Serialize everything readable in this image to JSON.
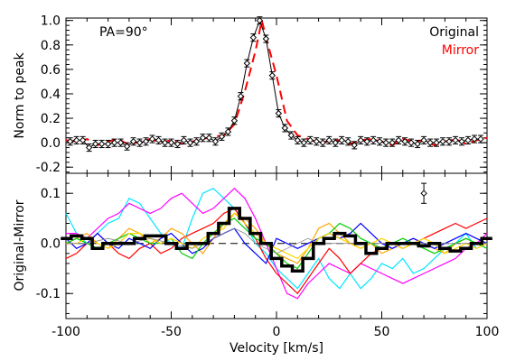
{
  "chart_data": [
    {
      "type": "line",
      "panel": "top",
      "ylabel": "Norm to peak",
      "xlim": [
        -100,
        100
      ],
      "ylim": [
        -0.25,
        1.02
      ],
      "yticks": [
        -0.2,
        0.0,
        0.2,
        0.4,
        0.6,
        0.8,
        1.0
      ],
      "ytick_labels": [
        "-0.2",
        "0.0",
        "0.2",
        "0.4",
        "0.6",
        "0.8",
        "1.0"
      ],
      "xticks": [
        -100,
        -50,
        0,
        50,
        100
      ],
      "annotation": "PA=90°",
      "legend": [
        "Original",
        "Mirror"
      ],
      "legend_position": "top-right",
      "series": [
        {
          "name": "Original",
          "color": "#000000",
          "style": "diamonds-with-errorbars",
          "error": 0.03,
          "x": [
            -98,
            -95,
            -92,
            -89,
            -86,
            -83,
            -80,
            -77,
            -74,
            -71,
            -68,
            -65,
            -62,
            -59,
            -56,
            -53,
            -50,
            -47,
            -44,
            -41,
            -38,
            -35,
            -32,
            -29,
            -26,
            -23,
            -20,
            -17,
            -14,
            -11,
            -8,
            -5,
            -2,
            1,
            4,
            7,
            10,
            13,
            16,
            19,
            22,
            25,
            28,
            31,
            34,
            37,
            40,
            43,
            46,
            49,
            52,
            55,
            58,
            61,
            64,
            67,
            70,
            73,
            76,
            79,
            82,
            85,
            88,
            91,
            94,
            97
          ],
          "values": [
            0.01,
            0.02,
            0.02,
            -0.04,
            -0.01,
            -0.01,
            -0.01,
            0.0,
            0.0,
            -0.03,
            0.01,
            0.0,
            0.01,
            0.03,
            0.02,
            0.0,
            0.0,
            -0.01,
            0.02,
            0.0,
            0.01,
            0.04,
            0.04,
            0.01,
            0.05,
            0.09,
            0.18,
            0.38,
            0.65,
            0.86,
            1.0,
            0.85,
            0.55,
            0.24,
            0.12,
            0.06,
            0.02,
            0.0,
            0.02,
            0.01,
            0.0,
            0.02,
            0.0,
            0.02,
            0.01,
            -0.02,
            0.02,
            0.01,
            0.02,
            0.01,
            0.0,
            0.0,
            0.02,
            0.01,
            0.0,
            -0.01,
            0.02,
            0.0,
            0.0,
            0.01,
            0.01,
            0.02,
            0.01,
            0.02,
            0.03,
            0.03
          ]
        },
        {
          "name": "Mirror",
          "color": "#ff0000",
          "style": "dashed",
          "x": [
            -100,
            -95,
            -90,
            -85,
            -80,
            -75,
            -70,
            -65,
            -60,
            -55,
            -50,
            -45,
            -40,
            -35,
            -30,
            -25,
            -20,
            -15,
            -10,
            -7,
            -4,
            0,
            5,
            10,
            15,
            20,
            25,
            30,
            35,
            40,
            45,
            50,
            55,
            60,
            65,
            70,
            75,
            80,
            85,
            90,
            95,
            100
          ],
          "values": [
            0.02,
            0.01,
            0.03,
            -0.02,
            0.01,
            0.03,
            -0.02,
            0.01,
            0.03,
            0.0,
            0.02,
            -0.01,
            0.01,
            0.03,
            0.05,
            0.06,
            0.15,
            0.42,
            0.75,
            1.0,
            0.8,
            0.55,
            0.18,
            0.06,
            0.03,
            0.0,
            0.01,
            0.02,
            -0.01,
            0.02,
            0.03,
            0.01,
            -0.02,
            0.03,
            0.01,
            0.02,
            -0.02,
            0.01,
            0.03,
            -0.01,
            0.02,
            0.04
          ]
        }
      ]
    },
    {
      "type": "line",
      "panel": "bottom",
      "ylabel": "Original-Mirror",
      "xlabel": "Velocity [km/s]",
      "xlim": [
        -100,
        100
      ],
      "ylim": [
        -0.15,
        0.14
      ],
      "yticks": [
        -0.1,
        0.0,
        0.1
      ],
      "ytick_labels": [
        "-0.1",
        "0.0",
        "0.1"
      ],
      "xticks": [
        -100,
        -50,
        0,
        50,
        100
      ],
      "xtick_labels": [
        "-100",
        "-50",
        "0",
        "50",
        "100"
      ],
      "reference_line": {
        "y": 0,
        "color": "#000000",
        "style": "dashed"
      },
      "errorbar_point": {
        "x": 70,
        "y": 0.1,
        "error": 0.02
      },
      "series": [
        {
          "color": "#000000",
          "style": "thick-step",
          "x": [
            -100,
            -95,
            -90,
            -85,
            -80,
            -75,
            -70,
            -65,
            -60,
            -55,
            -50,
            -45,
            -40,
            -35,
            -30,
            -25,
            -20,
            -15,
            -10,
            -5,
            0,
            5,
            10,
            15,
            20,
            25,
            30,
            35,
            40,
            45,
            50,
            55,
            60,
            65,
            70,
            75,
            80,
            85,
            90,
            95,
            100
          ],
          "values": [
            0.01,
            0.015,
            0.01,
            -0.01,
            0.0,
            0.0,
            0.0,
            0.01,
            0.015,
            0.015,
            0.0,
            -0.01,
            0.0,
            0.0,
            0.02,
            0.04,
            0.07,
            0.05,
            0.02,
            0.0,
            -0.03,
            -0.045,
            -0.055,
            -0.03,
            0.0,
            0.01,
            0.02,
            0.015,
            0.0,
            -0.02,
            -0.01,
            0.0,
            0.0,
            0.0,
            -0.005,
            0.0,
            -0.01,
            -0.015,
            -0.01,
            0.0,
            0.01
          ]
        },
        {
          "color": "#00e5ff",
          "x": [
            -100,
            -95,
            -90,
            -85,
            -80,
            -75,
            -70,
            -65,
            -60,
            -55,
            -50,
            -45,
            -40,
            -35,
            -30,
            -25,
            -20,
            -15,
            -10,
            -5,
            0,
            5,
            10,
            15,
            20,
            25,
            30,
            35,
            40,
            45,
            50,
            55,
            60,
            65,
            70,
            75,
            80,
            85,
            90,
            95,
            100
          ],
          "values": [
            0.06,
            0.02,
            0.0,
            0.02,
            0.04,
            0.05,
            0.09,
            0.08,
            0.05,
            0.02,
            0.0,
            -0.01,
            0.05,
            0.1,
            0.11,
            0.09,
            0.07,
            0.04,
            0.0,
            -0.02,
            -0.05,
            -0.07,
            -0.09,
            -0.06,
            -0.03,
            -0.07,
            -0.09,
            -0.06,
            -0.09,
            -0.07,
            -0.04,
            -0.05,
            -0.03,
            -0.06,
            -0.05,
            -0.03,
            -0.01,
            0.0,
            0.02,
            -0.01,
            0.0
          ]
        },
        {
          "color": "#ff00ff",
          "x": [
            -100,
            -95,
            -90,
            -85,
            -80,
            -75,
            -70,
            -65,
            -60,
            -55,
            -50,
            -45,
            -40,
            -35,
            -30,
            -25,
            -20,
            -15,
            -10,
            -5,
            0,
            5,
            10,
            15,
            20,
            25,
            30,
            35,
            40,
            45,
            50,
            55,
            60,
            65,
            70,
            75,
            80,
            85,
            90,
            95,
            100
          ],
          "values": [
            0.02,
            0.02,
            0.01,
            0.03,
            0.05,
            0.06,
            0.08,
            0.07,
            0.06,
            0.07,
            0.09,
            0.1,
            0.08,
            0.06,
            0.07,
            0.09,
            0.11,
            0.09,
            0.05,
            0.0,
            -0.05,
            -0.1,
            -0.11,
            -0.08,
            -0.06,
            -0.04,
            -0.05,
            -0.06,
            -0.04,
            -0.05,
            -0.06,
            -0.07,
            -0.08,
            -0.07,
            -0.06,
            -0.05,
            -0.04,
            -0.03,
            -0.01,
            0.0,
            0.02
          ]
        },
        {
          "color": "#ff0000",
          "x": [
            -100,
            -95,
            -90,
            -85,
            -80,
            -75,
            -70,
            -65,
            -60,
            -55,
            -50,
            -45,
            -40,
            -35,
            -30,
            -25,
            -20,
            -15,
            -10,
            -5,
            0,
            5,
            10,
            15,
            20,
            25,
            30,
            35,
            40,
            45,
            50,
            55,
            60,
            65,
            70,
            75,
            80,
            85,
            90,
            95,
            100
          ],
          "values": [
            -0.03,
            -0.02,
            0.0,
            0.02,
            0.0,
            -0.02,
            -0.03,
            -0.01,
            0.0,
            -0.02,
            -0.01,
            0.01,
            0.02,
            0.03,
            0.04,
            0.06,
            0.07,
            0.04,
            0.01,
            -0.03,
            -0.06,
            -0.08,
            -0.1,
            -0.07,
            -0.04,
            -0.01,
            -0.03,
            -0.06,
            -0.04,
            -0.02,
            -0.01,
            0.0,
            -0.01,
            0.0,
            0.01,
            0.02,
            0.03,
            0.04,
            0.03,
            0.04,
            0.05
          ]
        },
        {
          "color": "#ffa500",
          "x": [
            -100,
            -95,
            -90,
            -85,
            -80,
            -75,
            -70,
            -65,
            -60,
            -55,
            -50,
            -45,
            -40,
            -35,
            -30,
            -25,
            -20,
            -15,
            -10,
            -5,
            0,
            5,
            10,
            15,
            20,
            25,
            30,
            35,
            40,
            45,
            50,
            55,
            60,
            65,
            70,
            75,
            80,
            85,
            90,
            95,
            100
          ],
          "values": [
            0.0,
            0.01,
            0.02,
            0.0,
            -0.01,
            0.01,
            0.03,
            0.02,
            0.0,
            0.01,
            0.03,
            0.02,
            0.0,
            -0.02,
            0.01,
            0.04,
            0.06,
            0.05,
            0.03,
            0.0,
            -0.02,
            -0.03,
            -0.04,
            -0.01,
            0.03,
            0.04,
            0.02,
            0.0,
            -0.01,
            0.0,
            -0.02,
            -0.01,
            0.0,
            0.01,
            0.0,
            -0.01,
            -0.02,
            0.0,
            0.01,
            0.0,
            0.0
          ]
        },
        {
          "color": "#0000ff",
          "x": [
            -100,
            -95,
            -90,
            -85,
            -80,
            -75,
            -70,
            -65,
            -60,
            -55,
            -50,
            -45,
            -40,
            -35,
            -30,
            -25,
            -20,
            -15,
            -10,
            -5,
            0,
            5,
            10,
            15,
            20,
            25,
            30,
            35,
            40,
            45,
            50,
            55,
            60,
            65,
            70,
            75,
            80,
            85,
            90,
            95,
            100
          ],
          "values": [
            0.01,
            -0.01,
            0.0,
            0.02,
            0.0,
            -0.01,
            0.01,
            0.0,
            -0.01,
            0.01,
            0.02,
            0.0,
            -0.02,
            -0.01,
            0.01,
            0.02,
            0.03,
            0.0,
            -0.02,
            -0.04,
            0.01,
            0.0,
            -0.01,
            0.0,
            0.01,
            0.02,
            0.01,
            0.02,
            0.04,
            0.02,
            0.0,
            -0.01,
            0.0,
            0.01,
            0.0,
            -0.01,
            0.0,
            0.01,
            0.02,
            0.01,
            0.0
          ]
        },
        {
          "color": "#00cc00",
          "x": [
            -100,
            -95,
            -90,
            -85,
            -80,
            -75,
            -70,
            -65,
            -60,
            -55,
            -50,
            -45,
            -40,
            -35,
            -30,
            -25,
            -20,
            -15,
            -10,
            -5,
            0,
            5,
            10,
            15,
            20,
            25,
            30,
            35,
            40,
            45,
            50,
            55,
            60,
            65,
            70,
            75,
            80,
            85,
            90,
            95,
            100
          ],
          "values": [
            0.0,
            0.01,
            0.0,
            -0.01,
            0.0,
            0.01,
            0.02,
            0.01,
            0.0,
            0.0,
            0.01,
            -0.02,
            -0.03,
            0.0,
            0.02,
            0.04,
            0.05,
            0.03,
            0.01,
            0.0,
            -0.02,
            -0.04,
            -0.05,
            -0.02,
            0.01,
            0.02,
            0.04,
            0.03,
            0.01,
            0.0,
            -0.01,
            0.0,
            0.01,
            0.0,
            -0.01,
            -0.02,
            -0.01,
            0.0,
            0.01,
            0.0,
            -0.01
          ]
        },
        {
          "color": "#ffd700",
          "x": [
            -100,
            -95,
            -90,
            -85,
            -80,
            -75,
            -70,
            -65,
            -60,
            -55,
            -50,
            -45,
            -40,
            -35,
            -30,
            -25,
            -20,
            -15,
            -10,
            -5,
            0,
            5,
            10,
            15,
            20,
            25,
            30,
            35,
            40,
            45,
            50,
            55,
            60,
            65,
            70,
            75,
            80,
            85,
            90,
            95,
            100
          ],
          "values": [
            0.0,
            0.0,
            0.01,
            0.0,
            -0.01,
            0.0,
            0.02,
            0.02,
            0.01,
            0.0,
            0.01,
            0.0,
            -0.01,
            0.01,
            0.02,
            0.03,
            0.06,
            0.04,
            0.02,
            0.0,
            -0.01,
            -0.02,
            -0.03,
            -0.01,
            0.01,
            0.02,
            0.01,
            0.0,
            -0.01,
            0.0,
            0.01,
            0.0,
            -0.01,
            0.0,
            0.01,
            0.0,
            -0.02,
            -0.01,
            0.0,
            -0.01,
            0.0
          ]
        },
        {
          "color": "#888888",
          "style": "thin",
          "x": [
            -100,
            -90,
            -80,
            -70,
            -60,
            -50,
            -40,
            -30,
            -20,
            -15,
            -10,
            -5,
            0,
            5,
            10,
            15,
            20,
            30,
            40,
            50,
            60,
            70,
            80,
            90,
            100
          ],
          "values": [
            0.0,
            0.0,
            0.01,
            0.0,
            0.01,
            0.0,
            -0.01,
            0.01,
            0.03,
            0.02,
            0.0,
            -0.01,
            -0.02,
            -0.01,
            0.0,
            0.01,
            0.0,
            0.0,
            0.0,
            0.0,
            0.0,
            0.0,
            0.0,
            0.0,
            0.0
          ]
        }
      ]
    }
  ]
}
